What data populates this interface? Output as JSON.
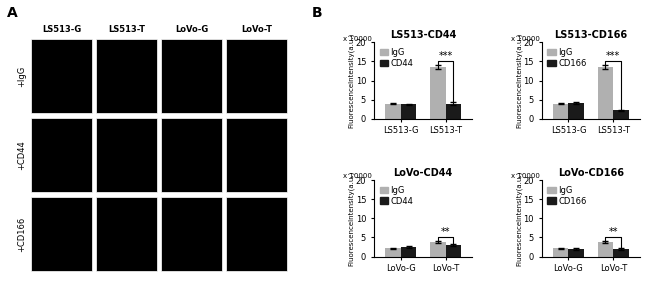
{
  "chart_data": [
    {
      "type": "image_grid",
      "panel": "A",
      "categories": [
        "LS513-G",
        "LS513-T",
        "LoVo-G",
        "LoVo-T"
      ],
      "rows": [
        "+IgG",
        "+CD44",
        "+CD166"
      ]
    },
    {
      "type": "bar",
      "panel": "B",
      "title": "LS513-CD44",
      "categories": [
        "LS513-G",
        "LS513-T"
      ],
      "series": [
        {
          "name": "IgG",
          "color": "#b0b0b0",
          "values": [
            4.0,
            13.5
          ],
          "errors": [
            0.2,
            0.5
          ]
        },
        {
          "name": "CD44",
          "color": "#1a1a1a",
          "values": [
            3.8,
            4.0
          ],
          "errors": [
            0.2,
            0.3
          ]
        }
      ],
      "y_label": "FluorescenceIntensity(a.u.)",
      "annotations": [
        "x 10000"
      ],
      "significance": [
        {
          "category": "LS513-T",
          "text": "***"
        }
      ],
      "ylim": [
        0,
        20
      ],
      "yticks": [
        0,
        5,
        10,
        15,
        20
      ],
      "legend": "upper left"
    },
    {
      "type": "bar",
      "title": "LS513-CD166",
      "categories": [
        "LS513-G",
        "LS513-T"
      ],
      "series": [
        {
          "name": "IgG",
          "color": "#b0b0b0",
          "values": [
            4.0,
            13.5
          ],
          "errors": [
            0.2,
            0.5
          ]
        },
        {
          "name": "CD166",
          "color": "#1a1a1a",
          "values": [
            4.2,
            2.2
          ],
          "errors": [
            0.2,
            0.2
          ]
        }
      ],
      "y_label": "FluorescenceIntensity(a.u.)",
      "annotations": [
        "x 10000"
      ],
      "significance": [
        {
          "category": "LS513-T",
          "text": "***"
        }
      ],
      "ylim": [
        0,
        20
      ],
      "yticks": [
        0,
        5,
        10,
        15,
        20
      ],
      "legend": "upper left"
    },
    {
      "type": "bar",
      "title": "LoVo-CD44",
      "categories": [
        "LoVo-G",
        "LoVo-T"
      ],
      "series": [
        {
          "name": "IgG",
          "color": "#b0b0b0",
          "values": [
            2.2,
            3.8
          ],
          "errors": [
            0.15,
            0.3
          ]
        },
        {
          "name": "CD44",
          "color": "#1a1a1a",
          "values": [
            2.5,
            3.0
          ],
          "errors": [
            0.15,
            0.25
          ]
        }
      ],
      "y_label": "FluorescenceIntensity(a.u.)",
      "annotations": [
        "x 10000"
      ],
      "significance": [
        {
          "category": "LoVo-T",
          "text": "**"
        }
      ],
      "ylim": [
        0,
        20
      ],
      "yticks": [
        0,
        5,
        10,
        15,
        20
      ],
      "legend": "upper left"
    },
    {
      "type": "bar",
      "title": "LoVo-CD166",
      "categories": [
        "LoVo-G",
        "LoVo-T"
      ],
      "series": [
        {
          "name": "IgG",
          "color": "#b0b0b0",
          "values": [
            2.2,
            3.8
          ],
          "errors": [
            0.15,
            0.3
          ]
        },
        {
          "name": "CD166",
          "color": "#1a1a1a",
          "values": [
            2.0,
            2.0
          ],
          "errors": [
            0.15,
            0.2
          ]
        }
      ],
      "y_label": "FluorescenceIntensity(a.u.)",
      "annotations": [
        "x 10000"
      ],
      "significance": [
        {
          "category": "LoVo-T",
          "text": "**"
        }
      ],
      "ylim": [
        0,
        20
      ],
      "yticks": [
        0,
        5,
        10,
        15,
        20
      ],
      "legend": "upper left"
    }
  ]
}
